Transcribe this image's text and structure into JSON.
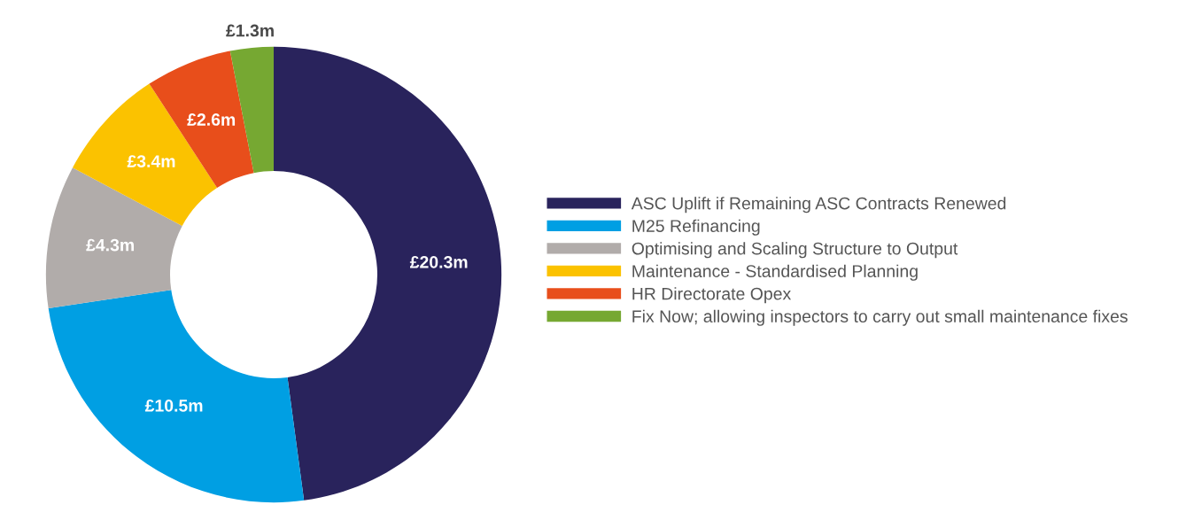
{
  "chart_data": {
    "type": "donut",
    "categories": [
      "ASC Uplift if Remaining ASC Contracts Renewed",
      "M25 Refinancing",
      "Optimising and Scaling Structure to Output",
      "Maintenance - Standardised Planning",
      "HR Directorate Opex",
      "Fix Now; allowing inspectors to carry out small maintenance fixes"
    ],
    "values": [
      20.3,
      10.5,
      4.3,
      3.4,
      2.6,
      1.3
    ],
    "value_labels": [
      "£20.3m",
      "£10.5m",
      "£4.3m",
      "£3.4m",
      "£2.6m",
      "£1.3m"
    ],
    "colors": [
      "#29235c",
      "#009fe3",
      "#b1acaa",
      "#fbc200",
      "#e84e1b",
      "#76a832"
    ],
    "legend": "right"
  }
}
